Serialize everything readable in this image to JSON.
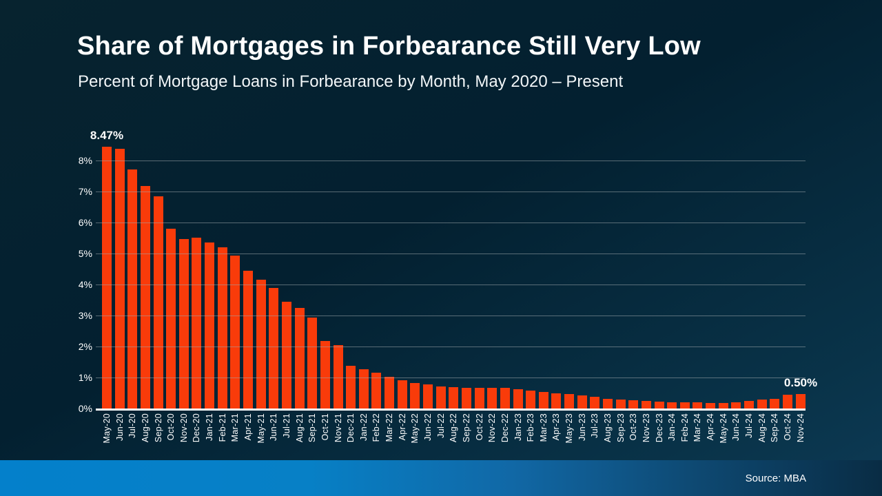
{
  "slide": {
    "title": "Share of Mortgages in Forbearance Still Very Low",
    "subtitle": "Percent of Mortgage Loans in Forbearance by Month, May 2020 – Present",
    "source": "Source: MBA"
  },
  "colors": {
    "bar": "#F93B0A",
    "background_dark": "#032030",
    "background_light": "#0D3A55",
    "footer_left": "#0480CB",
    "footer_right": "#092C44",
    "gridline": "#9EA8AC",
    "text": "#FFFFFF"
  },
  "chart_data": {
    "type": "bar",
    "title": "Share of Mortgages in Forbearance Still Very Low",
    "subtitle": "Percent of Mortgage Loans in Forbearance by Month, May 2020 – Present",
    "xlabel": "",
    "ylabel": "",
    "ylim": [
      0,
      8.5
    ],
    "grid": true,
    "yticks": [
      "0%",
      "1%",
      "2%",
      "3%",
      "4%",
      "5%",
      "6%",
      "7%",
      "8%"
    ],
    "categories": [
      "May-20",
      "Jun-20",
      "Jul-20",
      "Aug-20",
      "Sep-20",
      "Oct-20",
      "Nov-20",
      "Dec-20",
      "Jan-21",
      "Feb-21",
      "Mar-21",
      "Apr-21",
      "May-21",
      "Jun-21",
      "Jul-21",
      "Aug-21",
      "Sep-21",
      "Oct-21",
      "Nov-21",
      "Dec-21",
      "Jan-22",
      "Feb-22",
      "Mar-22",
      "Apr-22",
      "May-22",
      "Jun-22",
      "Jul-22",
      "Aug-22",
      "Sep-22",
      "Oct-22",
      "Nov-22",
      "Dec-22",
      "Jan-23",
      "Feb-23",
      "Mar-23",
      "Apr-23",
      "May-23",
      "Jun-23",
      "Jul-23",
      "Aug-23",
      "Sep-23",
      "Oct-23",
      "Nov-23",
      "Dec-23",
      "Jan-24",
      "Feb-24",
      "Mar-24",
      "Apr-24",
      "May-24",
      "Jun-24",
      "Jul-24",
      "Aug-24",
      "Sep-24",
      "Oct-24",
      "Nov-24"
    ],
    "values": [
      8.47,
      8.39,
      7.74,
      7.2,
      6.87,
      5.83,
      5.48,
      5.53,
      5.38,
      5.22,
      4.96,
      4.47,
      4.18,
      3.91,
      3.47,
      3.26,
      2.96,
      2.21,
      2.06,
      1.41,
      1.3,
      1.18,
      1.05,
      0.94,
      0.85,
      0.81,
      0.74,
      0.72,
      0.69,
      0.7,
      0.7,
      0.7,
      0.64,
      0.6,
      0.55,
      0.51,
      0.49,
      0.44,
      0.39,
      0.33,
      0.31,
      0.29,
      0.26,
      0.24,
      0.23,
      0.22,
      0.22,
      0.21,
      0.21,
      0.23,
      0.27,
      0.31,
      0.34,
      0.47,
      0.5
    ],
    "annotations": [
      {
        "category": "May-20",
        "label": "8.47%"
      },
      {
        "category": "Nov-24",
        "label": "0.50%"
      }
    ],
    "legend": null
  }
}
